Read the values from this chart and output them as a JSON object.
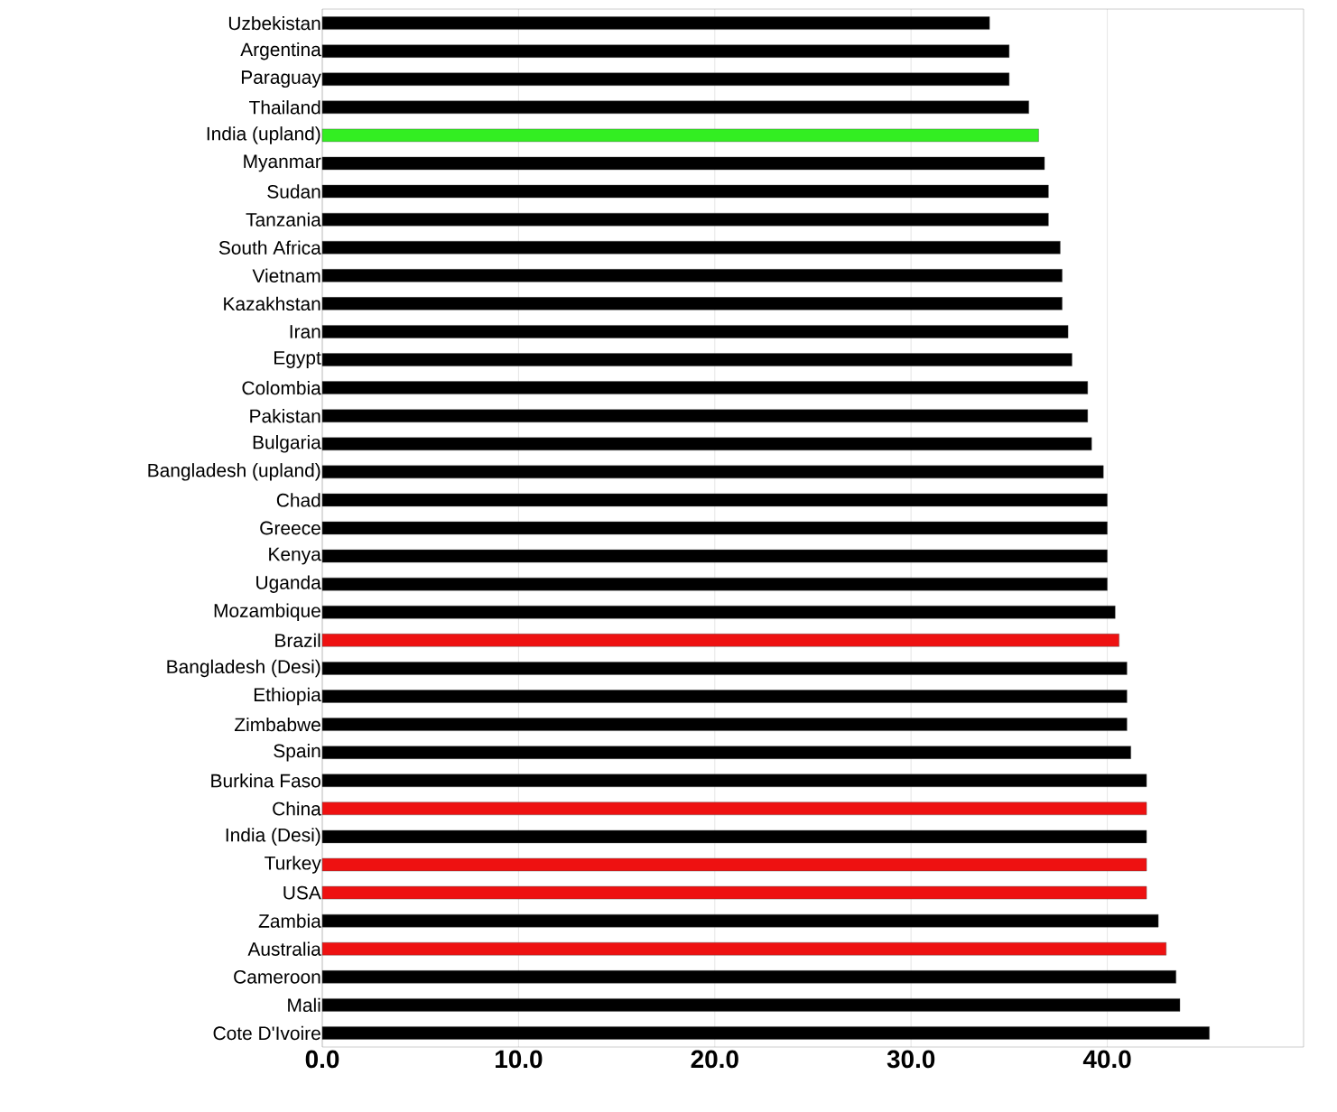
{
  "chart_data": {
    "type": "bar",
    "orientation": "horizontal",
    "categories": [
      "Uzbekistan",
      "Argentina",
      "Paraguay",
      "Thailand",
      "India (upland)",
      "Myanmar",
      "Sudan",
      "Tanzania",
      "South Africa",
      "Vietnam",
      "Kazakhstan",
      "Iran",
      "Egypt",
      "Colombia",
      "Pakistan",
      "Bulgaria",
      "Bangladesh (upland)",
      "Chad",
      "Greece",
      "Kenya",
      "Uganda",
      "Mozambique",
      "Brazil",
      "Bangladesh (Desi)",
      "Ethiopia",
      "Zimbabwe",
      "Spain",
      "Burkina Faso",
      "China",
      "India (Desi)",
      "Turkey",
      "USA",
      "Zambia",
      "Australia",
      "Cameroon",
      "Mali",
      "Cote D'Ivoire"
    ],
    "values": [
      34.0,
      35.0,
      35.0,
      36.0,
      36.5,
      36.8,
      37.0,
      37.0,
      37.6,
      37.7,
      37.7,
      38.0,
      38.2,
      39.0,
      39.0,
      39.2,
      39.8,
      40.0,
      40.0,
      40.0,
      40.0,
      40.4,
      40.6,
      41.0,
      41.0,
      41.0,
      41.2,
      42.0,
      42.0,
      42.0,
      42.0,
      42.0,
      42.6,
      43.0,
      43.5,
      43.7,
      45.2
    ],
    "colors": [
      "#000000",
      "#000000",
      "#000000",
      "#000000",
      "#33ee22",
      "#000000",
      "#000000",
      "#000000",
      "#000000",
      "#000000",
      "#000000",
      "#000000",
      "#000000",
      "#000000",
      "#000000",
      "#000000",
      "#000000",
      "#000000",
      "#000000",
      "#000000",
      "#000000",
      "#000000",
      "#ee1111",
      "#000000",
      "#000000",
      "#000000",
      "#000000",
      "#000000",
      "#ee1111",
      "#000000",
      "#ee1111",
      "#ee1111",
      "#000000",
      "#ee1111",
      "#000000",
      "#000000",
      "#000000"
    ],
    "xlim": [
      0,
      50
    ],
    "xticks": [
      {
        "value": 0,
        "label": "0.0"
      },
      {
        "value": 10,
        "label": "10.0"
      },
      {
        "value": 20,
        "label": "20.0"
      },
      {
        "value": 30,
        "label": "30.0"
      },
      {
        "value": 40,
        "label": "40.0"
      }
    ],
    "grid": "x"
  }
}
